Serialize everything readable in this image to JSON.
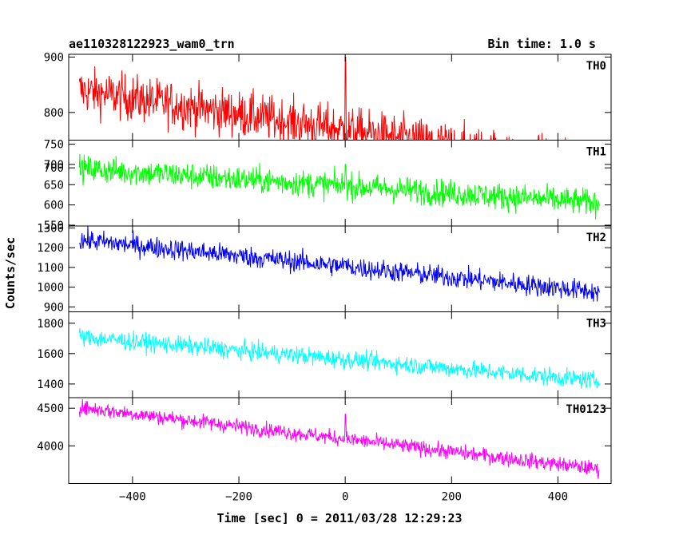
{
  "header": {
    "title": "ae110328122923_wam0_trn",
    "bin_time": "Bin time: 1.0 s"
  },
  "chart_data": {
    "type": "line",
    "title": "ae110328122923_wam0_trn",
    "xlabel": "Time [sec] 0 = 2011/03/28 12:29:23",
    "ylabel": "Counts/sec",
    "xlim": [
      -520,
      500
    ],
    "x_start": -500,
    "x_end": 478,
    "x_ticks": [
      -400,
      -200,
      0,
      200,
      400
    ],
    "x_tick_labels": [
      "−400",
      "−200",
      "0",
      "200",
      "400"
    ],
    "grid": false,
    "panels": [
      {
        "name": "TH0",
        "color": "#ff0000",
        "ylim": [
          750,
          905
        ],
        "yticks": [
          700,
          800,
          900
        ],
        "trend_start": 840,
        "trend_end": 700,
        "noise": 35,
        "spike_value": 900
      },
      {
        "name": "TH1",
        "color": "#00ff00",
        "ylim": [
          548,
          760
        ],
        "yticks": [
          550,
          600,
          650,
          700,
          750
        ],
        "trend_start": 690,
        "trend_end": 605,
        "noise": 28,
        "spike_value": 700
      },
      {
        "name": "TH2",
        "color": "#0000ff",
        "ylim": [
          875,
          1310
        ],
        "yticks": [
          900,
          1000,
          1100,
          1200,
          1300
        ],
        "trend_start": 1240,
        "trend_end": 975,
        "noise": 45,
        "spike_value": 1130
      },
      {
        "name": "TH3",
        "color": "#00ffff",
        "ylim": [
          1310,
          1875
        ],
        "yticks": [
          1400,
          1600,
          1800
        ],
        "trend_start": 1710,
        "trend_end": 1420,
        "noise": 50,
        "spike_value": 1560
      },
      {
        "name": "TH0123",
        "color": "#ff00ff",
        "ylim": [
          3500,
          4640
        ],
        "yticks": [
          4000,
          4500
        ],
        "trend_start": 4510,
        "trend_end": 3690,
        "noise": 85,
        "spike_value": 4420
      }
    ]
  }
}
